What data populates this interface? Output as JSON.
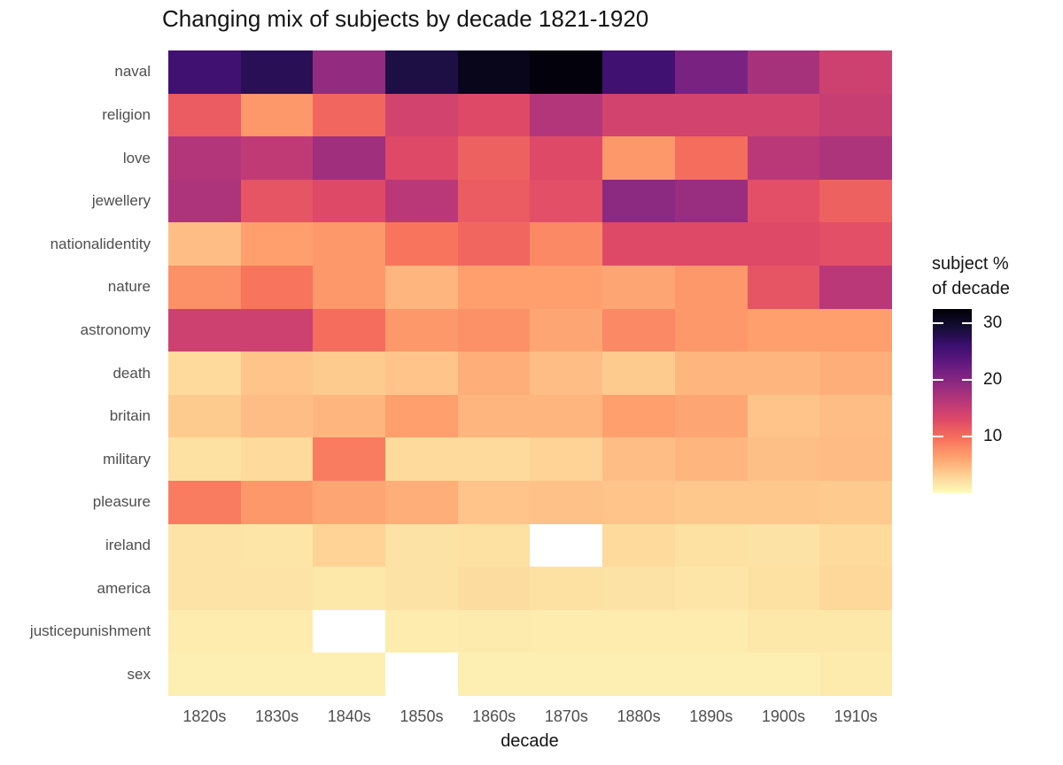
{
  "page": {
    "background": "#ffffff"
  },
  "style_colors": {
    "title_text": "#141414",
    "axis_tick_text": "#4e4e4e",
    "legend_text": "#141414",
    "missing_cell": "#ffffff"
  },
  "chart_data": {
    "type": "heatmap",
    "title": "Changing mix of subjects by decade 1821-1920",
    "xlabel": "decade",
    "ylabel": "",
    "legend_position": "right",
    "grid": false,
    "categories_x": [
      "1820s",
      "1830s",
      "1840s",
      "1850s",
      "1860s",
      "1870s",
      "1880s",
      "1890s",
      "1900s",
      "1910s"
    ],
    "categories_y": [
      "naval",
      "religion",
      "love",
      "jewellery",
      "nationalidentity",
      "nature",
      "astronomy",
      "death",
      "britain",
      "military",
      "pleasure",
      "ireland",
      "america",
      "justicepunishment",
      "sex"
    ],
    "values": [
      [
        25.5,
        27.5,
        19.0,
        28.5,
        31.0,
        32.0,
        25.5,
        21.0,
        17.5,
        14.5
      ],
      [
        11.5,
        7.0,
        10.5,
        14.0,
        13.0,
        16.5,
        14.0,
        14.0,
        14.0,
        15.0
      ],
      [
        16.5,
        15.5,
        18.0,
        13.0,
        11.0,
        13.0,
        7.0,
        10.0,
        16.0,
        17.0
      ],
      [
        17.0,
        12.0,
        13.0,
        16.0,
        11.5,
        12.5,
        19.5,
        18.5,
        12.5,
        11.0
      ],
      [
        4.5,
        6.5,
        7.0,
        9.5,
        10.5,
        8.0,
        13.0,
        13.0,
        13.0,
        12.5
      ],
      [
        7.5,
        9.5,
        7.0,
        5.0,
        6.5,
        6.5,
        6.0,
        7.0,
        12.0,
        16.0
      ],
      [
        14.5,
        14.5,
        10.0,
        7.0,
        7.5,
        6.0,
        8.0,
        7.0,
        6.5,
        6.5
      ],
      [
        2.5,
        4.0,
        3.5,
        4.0,
        5.5,
        4.5,
        3.5,
        5.0,
        5.0,
        5.5
      ],
      [
        3.5,
        4.5,
        5.0,
        6.5,
        5.0,
        5.0,
        6.5,
        6.0,
        4.0,
        4.5
      ],
      [
        2.0,
        2.5,
        9.0,
        2.5,
        2.5,
        3.0,
        4.5,
        5.0,
        4.3,
        4.6
      ],
      [
        9.0,
        7.0,
        6.0,
        5.5,
        4.0,
        4.2,
        4.0,
        3.7,
        3.8,
        3.6
      ],
      [
        1.8,
        1.7,
        3.0,
        1.9,
        2.0,
        null,
        2.5,
        2.0,
        1.9,
        2.5
      ],
      [
        1.8,
        1.8,
        1.5,
        1.9,
        2.3,
        2.0,
        1.9,
        1.7,
        2.0,
        2.6
      ],
      [
        1.2,
        1.2,
        null,
        1.2,
        1.3,
        1.2,
        1.2,
        1.2,
        1.5,
        1.5
      ],
      [
        1.0,
        1.0,
        1.0,
        null,
        1.0,
        1.0,
        1.0,
        1.0,
        1.0,
        1.3
      ]
    ],
    "missing_cells": [
      [
        "ireland",
        "1870s"
      ],
      [
        "justicepunishment",
        "1840s"
      ],
      [
        "sex",
        "1850s"
      ]
    ],
    "legend": {
      "title_line1": "subject %",
      "title_line2": "of decade",
      "ticks": [
        30,
        20,
        10
      ],
      "domain": [
        0,
        32.5
      ]
    },
    "colormap": {
      "name": "magma-reversed",
      "stops": [
        "#000004",
        "#140e36",
        "#3b0f70",
        "#641a80",
        "#8c2981",
        "#b73779",
        "#de4968",
        "#f7705c",
        "#fe9f6d",
        "#fecf92",
        "#fcfdbf"
      ],
      "missing_color": "#ffffff"
    }
  }
}
